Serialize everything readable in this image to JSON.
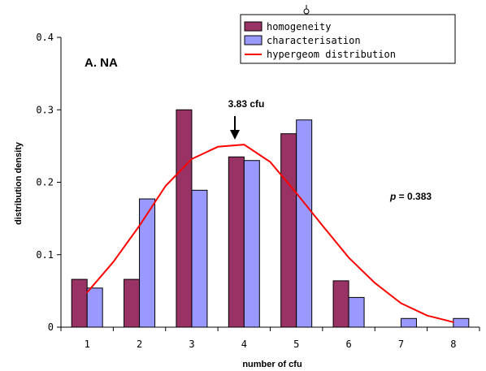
{
  "chart_data": {
    "type": "bar",
    "xlabel": "number of cfu",
    "ylabel": "distribution density",
    "ylim": [
      0,
      0.4
    ],
    "yticks": [
      "0",
      "0.1",
      "0.2",
      "0.3",
      "0.4"
    ],
    "yticks_values": [
      0,
      0.1,
      0.2,
      0.3,
      0.4
    ],
    "categories": [
      "1",
      "2",
      "3",
      "4",
      "5",
      "6",
      "7",
      "8"
    ],
    "grid": false,
    "legend_position": "top-right",
    "series": [
      {
        "name": "homogeneity",
        "kind": "bar",
        "color": "#993366",
        "values": [
          0.066,
          0.066,
          0.3,
          0.235,
          0.267,
          0.064,
          0,
          0
        ]
      },
      {
        "name": "characterisation",
        "kind": "bar",
        "color": "#9999ff",
        "values": [
          0.054,
          0.177,
          0.189,
          0.23,
          0.286,
          0.041,
          0.012,
          0.012
        ]
      },
      {
        "name": "hypergeom distribution",
        "kind": "line",
        "color": "#ff0000",
        "x": [
          1,
          1.5,
          2,
          2.5,
          3,
          3.5,
          4,
          4.5,
          5,
          5.5,
          6,
          6.5,
          7,
          7.5,
          8
        ],
        "values": [
          0.048,
          0.09,
          0.14,
          0.195,
          0.232,
          0.249,
          0.252,
          0.228,
          0.185,
          0.14,
          0.096,
          0.061,
          0.033,
          0.016,
          0.007
        ]
      }
    ],
    "annotations": {
      "panel_label": "A. NA",
      "arrow_label": "3.83 cfu",
      "arrow_x": 3.83,
      "arrow_y": 0.26,
      "p_label": "p",
      "p_value_text": " = 0.383"
    }
  }
}
